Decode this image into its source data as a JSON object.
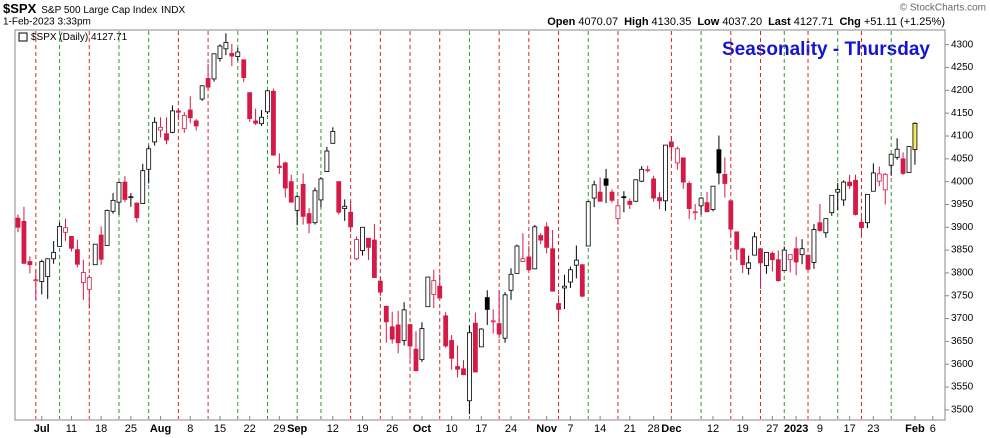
{
  "chart_data": {
    "type": "candlestick",
    "symbol": "$SPX",
    "name": "S&P 500 Large Cap Index",
    "exchange": "INDX",
    "date": "1-Feb-2023 3:33pm",
    "stats": [
      {
        "label": "Open",
        "value": "4070.07"
      },
      {
        "label": "High",
        "value": "4130.35"
      },
      {
        "label": "Low",
        "value": "4037.20"
      },
      {
        "label": "Last",
        "value": "4127.71"
      },
      {
        "label": "Chg",
        "value": "+51.11 (+1.25%)"
      }
    ],
    "copyright": "© StockCharts.com",
    "series_name": "$SPX (Daily) 4127.71",
    "title": "Seasonality - Thursday",
    "categories": [
      null,
      null,
      null,
      null,
      "Jul",
      null,
      null,
      null,
      null,
      "11",
      null,
      null,
      null,
      null,
      "18",
      null,
      null,
      null,
      null,
      "25",
      null,
      null,
      null,
      null,
      "Aug",
      null,
      null,
      null,
      null,
      "8",
      null,
      null,
      null,
      null,
      "15",
      null,
      null,
      null,
      null,
      "22",
      null,
      null,
      null,
      null,
      "29",
      null,
      null,
      "Sep",
      null,
      null,
      null,
      null,
      null,
      "12",
      null,
      null,
      null,
      null,
      "19",
      null,
      null,
      null,
      null,
      "26",
      null,
      null,
      null,
      null,
      "Oct",
      null,
      null,
      null,
      null,
      "10",
      null,
      null,
      null,
      null,
      "17",
      null,
      null,
      null,
      null,
      "24",
      null,
      null,
      null,
      null,
      null,
      "Nov",
      null,
      null,
      null,
      "7",
      null,
      null,
      null,
      null,
      "14",
      null,
      null,
      null,
      null,
      "21",
      null,
      null,
      null,
      "28",
      null,
      null,
      "Dec",
      null,
      null,
      null,
      null,
      null,
      null,
      "12",
      null,
      null,
      null,
      null,
      "19",
      null,
      null,
      null,
      null,
      "27",
      null,
      null,
      null,
      "2023",
      null,
      null,
      null,
      "9",
      null,
      null,
      null,
      null,
      "17",
      null,
      null,
      null,
      "23",
      null,
      null,
      null,
      null,
      null,
      null,
      "Feb",
      null,
      null,
      "6"
    ],
    "open": [
      3920,
      3913,
      3825,
      3785,
      3781,
      3792,
      3831,
      3858,
      3889,
      3880,
      3851,
      3779,
      3764,
      3818,
      3883,
      3860,
      3935,
      3955,
      3999,
      3965,
      3953,
      3952,
      4027,
      4087,
      4113,
      4105,
      4108,
      4155,
      4116,
      4157,
      4133,
      4181,
      4226,
      4225,
      4270,
      4291,
      4281,
      4274,
      4267,
      4195,
      4133,
      4127,
      4153,
      4198,
      4034,
      4041,
      4000,
      3937,
      3994,
      3930,
      3910,
      3960,
      4022,
      4084,
      4000,
      3941,
      3933,
      3831,
      3849,
      3876,
      3872,
      3782,
      3727,
      3682,
      3686,
      3652,
      3687,
      3633,
      3610,
      3726,
      3753,
      3771,
      3706,
      3652,
      3595,
      3590,
      3520,
      3690,
      3638,
      3746,
      3695,
      3689,
      3657,
      3762,
      3799,
      3825,
      3835,
      3809,
      3882,
      3901,
      3853,
      3733,
      3767,
      3780,
      3817,
      3818,
      3859,
      3964,
      3977,
      4006,
      3977,
      3919,
      3967,
      3957,
      3957,
      4001,
      4024,
      4006,
      3965,
      3958,
      4087,
      4041,
      4052,
      3996,
      3934,
      3947,
      3954,
      3939,
      4070,
      4016,
      3958,
      3890,
      3853,
      3810,
      3839,
      3853,
      3816,
      3843,
      3829,
      3805,
      3829,
      3853,
      3840,
      3839,
      3823,
      3910,
      3888,
      3932,
      3977,
      3960,
      3999,
      4003,
      3911,
      3910,
      3979,
      4001,
      3982,
      4036,
      4053,
      4050,
      4020,
      4070.07,
      null,
      null,
      null
    ],
    "high": [
      3928,
      3945,
      3836,
      3808,
      3829,
      3832,
      3870,
      3910,
      3919,
      3880,
      3873,
      3829,
      3796,
      3863,
      3902,
      3939,
      3975,
      3999,
      4012,
      3975,
      3954,
      4039,
      4079,
      4141,
      4141,
      4141,
      4167,
      4161,
      4152,
      4187,
      4137,
      4211,
      4258,
      4281,
      4301,
      4325,
      4302,
      4292,
      4267,
      4195,
      4160,
      4157,
      4200,
      4204,
      4062,
      4044,
      4015,
      3970,
      4018,
      3942,
      3987,
      4010,
      4076,
      4119,
      4000,
      3961,
      3957,
      3880,
      3900,
      3876,
      3907,
      3790,
      3727,
      3715,
      3717,
      3736,
      3687,
      3672,
      3692,
      3791,
      3807,
      3797,
      3714,
      3664,
      3641,
      3609,
      3685,
      3713,
      3679,
      3762,
      3720,
      3762,
      3758,
      3810,
      3862,
      3887,
      3859,
      3905,
      3887,
      3911,
      3894,
      3751,
      3796,
      3814,
      3860,
      3819,
      3958,
      4002,
      4009,
      4028,
      3983,
      3954,
      3979,
      3963,
      4005,
      4034,
      4035,
      4013,
      3977,
      4080,
      4100,
      4077,
      4053,
      4001,
      3951,
      3966,
      3977,
      3990,
      4101,
      4053,
      3959,
      3890,
      3855,
      3838,
      3889,
      3853,
      3846,
      3847,
      3849,
      3858,
      3840,
      3879,
      3874,
      3839,
      3907,
      3951,
      3919,
      3970,
      3997,
      4003,
      4015,
      4015,
      3922,
      3973,
      4040,
      4033,
      4019,
      4061,
      4095,
      4064,
      4077,
      4130.35,
      null,
      null,
      null
    ],
    "low": [
      3889,
      3820,
      3799,
      3741,
      3753,
      3743,
      3820,
      3858,
      3870,
      3847,
      3812,
      3741,
      3722,
      3818,
      3818,
      3860,
      3930,
      3927,
      3955,
      3945,
      3911,
      3952,
      3996,
      4079,
      4097,
      4082,
      4106,
      4135,
      4107,
      4128,
      4112,
      4177,
      4201,
      4219,
      4263,
      4277,
      4253,
      4265,
      4218,
      4131,
      4124,
      4122,
      4148,
      4057,
      4017,
      3965,
      3954,
      3904,
      3906,
      3887,
      3906,
      3944,
      4022,
      4083,
      3928,
      3914,
      3889,
      3828,
      3838,
      3828,
      3789,
      3750,
      3647,
      3645,
      3624,
      3641,
      3610,
      3584,
      3605,
      3726,
      3723,
      3745,
      3636,
      3588,
      3571,
      3576,
      3491,
      3584,
      3638,
      3686,
      3667,
      3657,
      3647,
      3741,
      3799,
      3824,
      3804,
      3808,
      3863,
      3843,
      3759,
      3699,
      3721,
      3767,
      3788,
      3747,
      3859,
      3944,
      3957,
      3953,
      3954,
      3906,
      3933,
      3940,
      3956,
      3999,
      4020,
      3956,
      3940,
      3936,
      4050,
      4026,
      3984,
      3918,
      3916,
      3928,
      3933,
      3935,
      3994,
      3965,
      3879,
      3828,
      3800,
      3796,
      3839,
      3765,
      3798,
      3803,
      3781,
      3805,
      3801,
      3795,
      3819,
      3802,
      3809,
      3890,
      3877,
      3925,
      3937,
      3947,
      3984,
      3926,
      3885,
      3898,
      3979,
      3990,
      3950,
      4013,
      4048,
      4015,
      4020,
      4037.2,
      null,
      null,
      null
    ],
    "close": [
      3900,
      3821,
      3818,
      3785,
      3825,
      3831,
      3845,
      3902,
      3899,
      3854,
      3819,
      3801,
      3790,
      3863,
      3830,
      3937,
      3959,
      3998,
      3961,
      3967,
      3921,
      4024,
      4072,
      4130,
      4119,
      4091,
      4155,
      4152,
      4145,
      4140,
      4122,
      4210,
      4207,
      4280,
      4297,
      4305,
      4275,
      4284,
      4228,
      4138,
      4128,
      4141,
      4199,
      4058,
      4031,
      3986,
      3955,
      3967,
      3924,
      3909,
      3980,
      4006,
      4067,
      4110,
      3933,
      3946,
      3901,
      3873,
      3900,
      3856,
      3790,
      3758,
      3693,
      3655,
      3647,
      3719,
      3640,
      3586,
      3678,
      3791,
      3783,
      3745,
      3640,
      3613,
      3589,
      3577,
      3669,
      3583,
      3677,
      3720,
      3695,
      3666,
      3752,
      3797,
      3859,
      3831,
      3807,
      3901,
      3872,
      3856,
      3760,
      3720,
      3771,
      3807,
      3828,
      3749,
      3956,
      3993,
      3957,
      3992,
      3959,
      3947,
      3965,
      3950,
      4004,
      4027,
      4026,
      3964,
      3958,
      4080,
      4076,
      4072,
      3999,
      3941,
      3934,
      3964,
      3934,
      3990,
      4019,
      3996,
      3896,
      3852,
      3818,
      3822,
      3879,
      3822,
      3845,
      3829,
      3783,
      3850,
      3840,
      3824,
      3853,
      3808,
      3895,
      3893,
      3919,
      3970,
      3983,
      3999,
      3991,
      3928,
      3899,
      3972,
      4019,
      4017,
      4016,
      4060,
      4071,
      4018,
      4077,
      4127.71,
      null,
      null,
      null
    ],
    "vlines": [
      {
        "at": 3,
        "color": "#d42a2a"
      },
      {
        "at": 7,
        "color": "#2e9a2e"
      },
      {
        "at": 12,
        "color": "#d42a2a"
      },
      {
        "at": 17,
        "color": "#2e9a2e"
      },
      {
        "at": 22,
        "color": "#2e9a2e"
      },
      {
        "at": 27,
        "color": "#d42a2a"
      },
      {
        "at": 32,
        "color": "#d42a2a"
      },
      {
        "at": 37,
        "color": "#2e9a2e"
      },
      {
        "at": 42,
        "color": "#2e9a2e"
      },
      {
        "at": 47,
        "color": "#2e9a2e"
      },
      {
        "at": 51,
        "color": "#2e9a2e"
      },
      {
        "at": 56,
        "color": "#d42a2a"
      },
      {
        "at": 61,
        "color": "#d42a2a"
      },
      {
        "at": 66,
        "color": "#d42a2a"
      },
      {
        "at": 71,
        "color": "#d42a2a"
      },
      {
        "at": 76,
        "color": "#2e9a2e"
      },
      {
        "at": 81,
        "color": "#d42a2a"
      },
      {
        "at": 86,
        "color": "#d42a2a"
      },
      {
        "at": 91,
        "color": "#d42a2a"
      },
      {
        "at": 96,
        "color": "#2e9a2e"
      },
      {
        "at": 101,
        "color": "#d42a2a"
      },
      {
        "at": 110,
        "color": "#d42a2a"
      },
      {
        "at": 115,
        "color": "#2e9a2e"
      },
      {
        "at": 120,
        "color": "#d42a2a"
      },
      {
        "at": 125,
        "color": "#d42a2a"
      },
      {
        "at": 129,
        "color": "#2e9a2e"
      },
      {
        "at": 133,
        "color": "#d42a2a"
      },
      {
        "at": 138,
        "color": "#2e9a2e"
      },
      {
        "at": 142,
        "color": "#d42a2a"
      },
      {
        "at": 147,
        "color": "#2e9a2e"
      }
    ],
    "colors": {
      "up": "#000000",
      "down": "#d41a46",
      "last": "#f2ee5a",
      "title": "#1414d2"
    },
    "ylim": [
      3480,
      4330
    ],
    "yticks": [
      3500,
      3550,
      3600,
      3650,
      3700,
      3750,
      3800,
      3850,
      3900,
      3950,
      4000,
      4050,
      4100,
      4150,
      4200,
      4250,
      4300
    ],
    "grid": false
  }
}
